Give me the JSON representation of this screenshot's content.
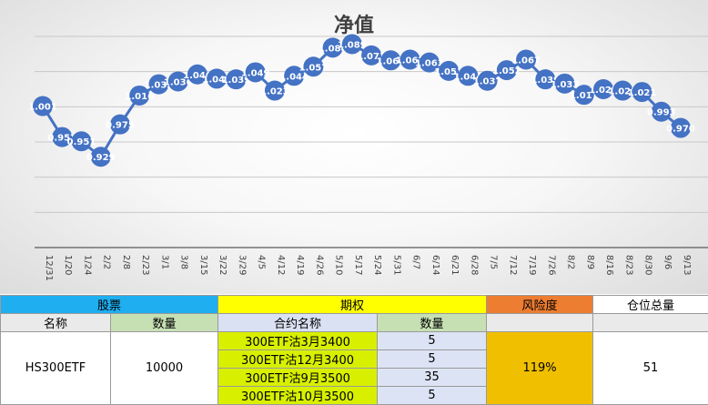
{
  "chart_data": {
    "type": "line",
    "title": "净值",
    "categories": [
      "12/31",
      "1/20",
      "1/24",
      "2/2",
      "2/8",
      "2/23",
      "3/1",
      "3/8",
      "3/15",
      "3/22",
      "3/29",
      "4/5",
      "4/12",
      "4/19",
      "4/26",
      "5/10",
      "5/17",
      "5/24",
      "5/31",
      "6/7",
      "6/14",
      "6/21",
      "6/28",
      "7/5",
      "7/12",
      "7/19",
      "7/26",
      "8/2",
      "8/9",
      "8/16",
      "8/23",
      "8/30",
      "9/6",
      "9/13"
    ],
    "series": [
      {
        "values": [
          1.001,
          0.957,
          0.951,
          0.929,
          0.975,
          1.016,
          1.032,
          1.036,
          1.046,
          1.04,
          1.039,
          1.049,
          1.023,
          1.044,
          1.057,
          1.084,
          1.089,
          1.073,
          1.066,
          1.067,
          1.063,
          1.051,
          1.044,
          1.037,
          1.052,
          1.067,
          1.039,
          1.033,
          1.017,
          1.025,
          1.023,
          1.021,
          0.993,
          0.97
        ],
        "labels": [
          "1.001",
          "0.957",
          "0.951",
          "0.929",
          "0.975",
          "1.016",
          "1.032",
          "1.036",
          "1.046",
          "1.040",
          "1.039",
          "1.049",
          "1.023",
          "1.044",
          "1.057",
          "1.084",
          "1.089",
          "1.073",
          "1.066",
          "1.067",
          "1.063",
          "1.051",
          "1.044",
          "1.037",
          "1.052",
          "1.067",
          "1.039",
          "1.033",
          "1.017",
          "1.025",
          "1.023",
          "1.021",
          "0.993",
          "0.970"
        ]
      }
    ],
    "ylim": [
      0.8,
      1.1
    ],
    "grid": true,
    "line_color": "#4472c4"
  },
  "table": {
    "group_headers": {
      "stock": "股票",
      "option": "期权",
      "risk": "风险度",
      "position": "仓位总量"
    },
    "sub_headers": {
      "name": "名称",
      "qty": "数量",
      "contract_name": "合约名称",
      "option_qty": "数量"
    },
    "stock": {
      "name": "HS300ETF",
      "qty": "10000"
    },
    "options": [
      {
        "contract": "300ETF沽3月3400",
        "qty": "5"
      },
      {
        "contract": "300ETF沽12月3400",
        "qty": "5"
      },
      {
        "contract": "300ETF沽9月3500",
        "qty": "35"
      },
      {
        "contract": "300ETF沽10月3500",
        "qty": "5"
      }
    ],
    "risk": "119%",
    "position": "51"
  }
}
